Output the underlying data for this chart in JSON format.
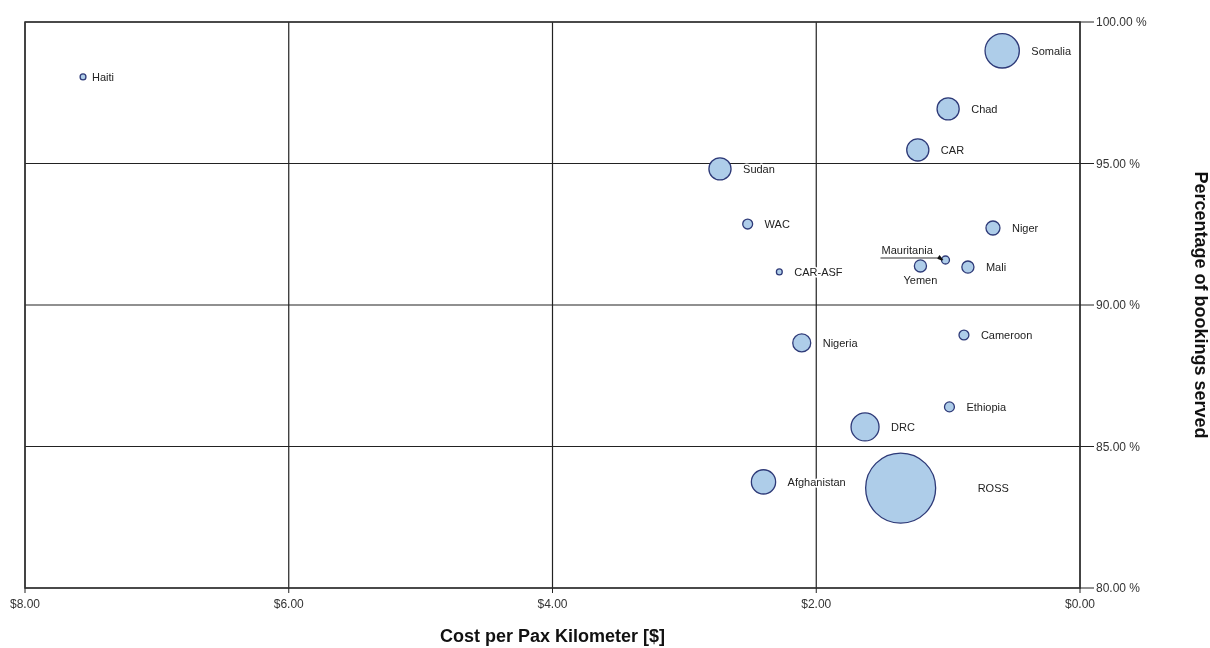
{
  "chart_data": {
    "type": "bubble",
    "xlabel": "Cost per Pax Kilometer [$]",
    "ylabel": "Percentage of bookings served",
    "xlim": [
      8,
      0
    ],
    "xticks": [
      {
        "value": 8,
        "label": "$8.00"
      },
      {
        "value": 6,
        "label": "$6.00"
      },
      {
        "value": 4,
        "label": "$4.00"
      },
      {
        "value": 2,
        "label": "$2.00"
      },
      {
        "value": 0,
        "label": "$0.00"
      }
    ],
    "ylim": [
      80,
      100
    ],
    "yticks": [
      {
        "value": 80,
        "label": "80.00 %"
      },
      {
        "value": 85,
        "label": "85.00 %"
      },
      {
        "value": 90,
        "label": "90.00 %"
      },
      {
        "value": 95,
        "label": "95.00 %"
      },
      {
        "value": 100,
        "label": "100.00 %"
      }
    ],
    "grid": true,
    "series": [
      {
        "color": "#aecde9",
        "x": [
          7.56,
          0.59,
          1.0,
          1.23,
          2.73,
          2.52,
          0.66,
          1.02,
          1.21,
          0.85,
          2.28,
          2.11,
          0.88,
          0.99,
          1.63,
          2.4,
          1.36
        ],
        "values": [
          98.06,
          98.98,
          96.93,
          95.48,
          94.81,
          92.86,
          92.72,
          91.59,
          91.38,
          91.34,
          91.17,
          88.66,
          88.94,
          86.4,
          85.69,
          83.75,
          83.53
        ],
        "sizes": [
          0.007,
          0.24,
          0.1,
          0.1,
          0.1,
          0.02,
          0.04,
          0.013,
          0.03,
          0.03,
          0.007,
          0.066,
          0.02,
          0.02,
          0.16,
          0.12,
          1
        ]
      }
    ],
    "annotations": [
      {
        "text": "Haiti",
        "x": 7.56,
        "y": 98.06
      },
      {
        "text": "Somalia",
        "x": 0.59,
        "y": 98.98
      },
      {
        "text": "Chad",
        "x": 1.0,
        "y": 96.93
      },
      {
        "text": "CAR",
        "x": 1.23,
        "y": 95.48
      },
      {
        "text": "Sudan",
        "x": 2.73,
        "y": 94.81
      },
      {
        "text": "WAC",
        "x": 2.52,
        "y": 92.86
      },
      {
        "text": "Niger",
        "x": 0.66,
        "y": 92.72
      },
      {
        "text": "Mauritania",
        "x": 1.02,
        "y": 91.59
      },
      {
        "text": "Yemen",
        "x": 1.21,
        "y": 91.38
      },
      {
        "text": "Mali",
        "x": 0.85,
        "y": 91.34
      },
      {
        "text": "CAR-ASF",
        "x": 2.28,
        "y": 91.17
      },
      {
        "text": "Nigeria",
        "x": 2.11,
        "y": 88.66
      },
      {
        "text": "Cameroon",
        "x": 0.88,
        "y": 88.94
      },
      {
        "text": "Ethiopia",
        "x": 0.99,
        "y": 86.4
      },
      {
        "text": "DRC",
        "x": 1.63,
        "y": 85.69
      },
      {
        "text": "Afghanistan",
        "x": 2.4,
        "y": 83.75
      },
      "ROSS"
    ]
  }
}
